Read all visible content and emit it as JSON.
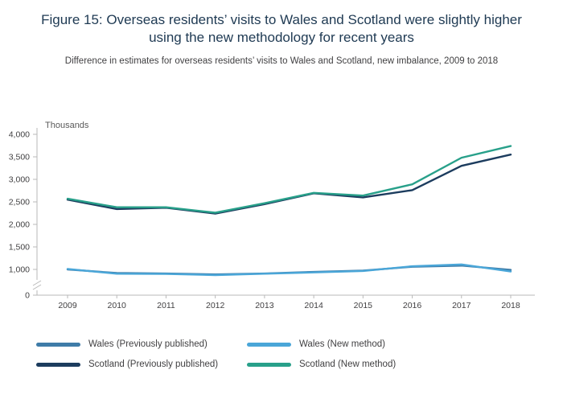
{
  "figure": {
    "title": "Figure 15: Overseas residents’ visits to Wales and Scotland were slightly higher using the new methodology for recent years",
    "subtitle": "Difference in estimates for overseas residents’ visits to Wales and Scotland, new imbalance, 2009 to 2018"
  },
  "chart_data": {
    "type": "line",
    "unit_label": "Thousands",
    "x": [
      2009,
      2010,
      2011,
      2012,
      2013,
      2014,
      2015,
      2016,
      2017,
      2018
    ],
    "series": [
      {
        "name": "Wales (Previously published)",
        "color": "#3f7ca8",
        "values": [
          1000,
          920,
          910,
          890,
          910,
          945,
          975,
          1060,
          1085,
          990
        ]
      },
      {
        "name": "Wales (New method)",
        "color": "#4aa6d8",
        "values": [
          1010,
          905,
          900,
          875,
          905,
          935,
          965,
          1070,
          1110,
          955
        ]
      },
      {
        "name": "Scotland (Previously published)",
        "color": "#1c3c5e",
        "values": [
          2550,
          2340,
          2370,
          2240,
          2450,
          2690,
          2600,
          2760,
          3300,
          3550
        ]
      },
      {
        "name": "Scotland (New method)",
        "color": "#28a08a",
        "values": [
          2570,
          2380,
          2380,
          2260,
          2470,
          2700,
          2640,
          2890,
          3480,
          3740
        ]
      }
    ],
    "y_ticks": [
      {
        "value": 0,
        "label": "0"
      },
      {
        "value": 1000,
        "label": "1,000"
      },
      {
        "value": 1500,
        "label": "1,500"
      },
      {
        "value": 2000,
        "label": "2,000"
      },
      {
        "value": 2500,
        "label": "2,500"
      },
      {
        "value": 3000,
        "label": "3,000"
      },
      {
        "value": 3500,
        "label": "3,500"
      },
      {
        "value": 4000,
        "label": "4,000"
      }
    ],
    "ylim": [
      1000,
      4000
    ],
    "y_axis_break": true,
    "grid": false,
    "legend_position": "bottom-left"
  }
}
